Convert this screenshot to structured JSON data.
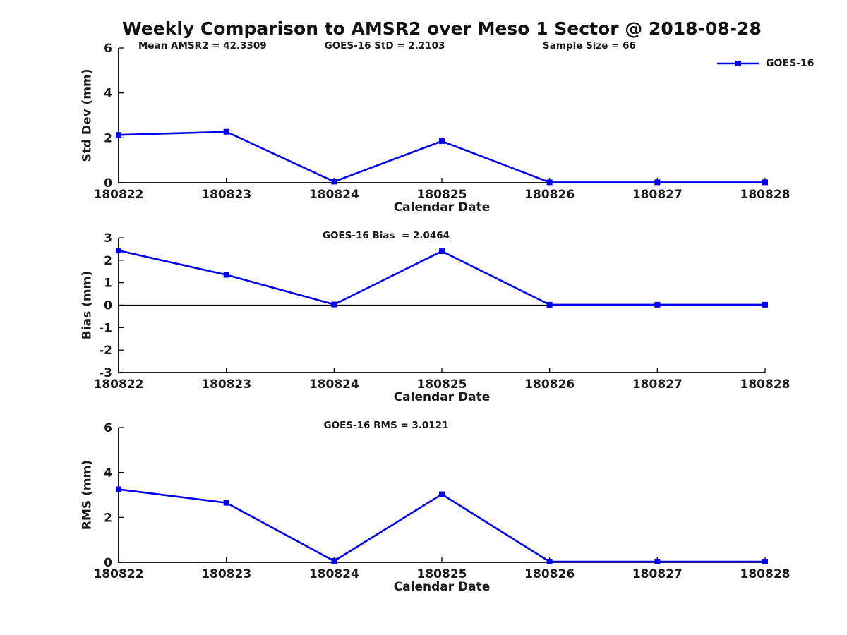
{
  "title": "Weekly Comparison to AMSR2 over Meso 1 Sector @ 2018-08-28",
  "colors": {
    "series": "#0000EE",
    "axis": "#000000",
    "text": "#1a1a1a",
    "background": "#ffffff"
  },
  "legend": {
    "label": "GOES-16"
  },
  "chart_data": [
    {
      "type": "line",
      "ylabel": "Std Dev (mm)",
      "xlabel": "Calendar Date",
      "annotations": [
        "Mean AMSR2 = 42.3309",
        "GOES-16 StD = 2.2103",
        "Sample Size = 66"
      ],
      "categories": [
        "180822",
        "180823",
        "180824",
        "180825",
        "180826",
        "180827",
        "180828"
      ],
      "ylim": [
        0,
        6
      ],
      "yticks": [
        0,
        2,
        4,
        6
      ],
      "zero_line": false,
      "grid": false,
      "legend_position": "top-right-outside",
      "series": [
        {
          "name": "GOES-16",
          "values": [
            2.13,
            2.27,
            0.05,
            1.85,
            0.02,
            0.02,
            0.02
          ]
        }
      ]
    },
    {
      "type": "line",
      "ylabel": "Bias (mm)",
      "xlabel": "Calendar Date",
      "annotations": [
        "GOES-16 Bias  = 2.0464"
      ],
      "categories": [
        "180822",
        "180823",
        "180824",
        "180825",
        "180826",
        "180827",
        "180828"
      ],
      "ylim": [
        -3,
        3
      ],
      "yticks": [
        -3,
        -2,
        -1,
        0,
        1,
        2,
        3
      ],
      "zero_line": true,
      "grid": false,
      "series": [
        {
          "name": "GOES-16",
          "values": [
            2.43,
            1.35,
            0.03,
            2.4,
            0.02,
            0.02,
            0.02
          ]
        }
      ]
    },
    {
      "type": "line",
      "ylabel": "RMS (mm)",
      "xlabel": "Calendar Date",
      "annotations": [
        "GOES-16 RMS = 3.0121"
      ],
      "categories": [
        "180822",
        "180823",
        "180824",
        "180825",
        "180826",
        "180827",
        "180828"
      ],
      "ylim": [
        0,
        6
      ],
      "yticks": [
        0,
        2,
        4,
        6
      ],
      "zero_line": false,
      "grid": false,
      "series": [
        {
          "name": "GOES-16",
          "values": [
            3.25,
            2.65,
            0.06,
            3.03,
            0.03,
            0.03,
            0.03
          ]
        }
      ]
    }
  ]
}
